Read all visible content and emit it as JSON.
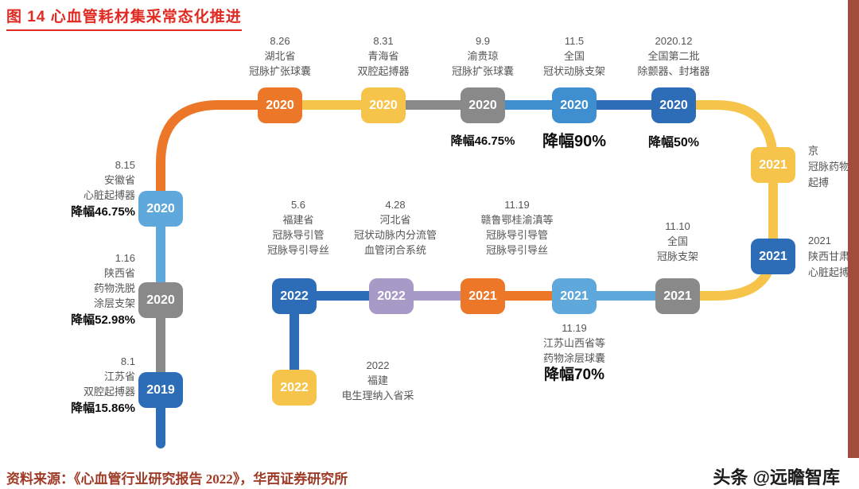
{
  "figure": {
    "title": "图 14 心血管耗材集采常态化推进",
    "source": "资料来源：《心血管行业研究报告 2022》，华西证券研究所",
    "watermark": "头条 @远瞻智库"
  },
  "colors": {
    "title_red": "#e02a22",
    "source_red": "#9e3a26",
    "side_bar": "#a24d3c",
    "orange": "#ec7728",
    "yellow": "#f6c44a",
    "gray": "#898989",
    "blue": "#3e8ed0",
    "dark_blue": "#2d6cb7",
    "light_blue": "#5fa8dc",
    "purple": "#a89ac6",
    "label_text": "#555555",
    "highlight_text": "#0d0d0d"
  },
  "nodes": [
    {
      "year": "2019",
      "color": "#2d6cb7"
    },
    {
      "year": "2020",
      "color": "#898989"
    },
    {
      "year": "2020",
      "color": "#5fa8dc"
    },
    {
      "year": "2020",
      "color": "#ec7728"
    },
    {
      "year": "2020",
      "color": "#f6c44a"
    },
    {
      "year": "2020",
      "color": "#898989"
    },
    {
      "year": "2020",
      "color": "#3e8ed0"
    },
    {
      "year": "2020",
      "color": "#2d6cb7"
    },
    {
      "year": "2021",
      "color": "#f6c44a"
    },
    {
      "year": "2021",
      "color": "#2d6cb7"
    },
    {
      "year": "2021",
      "color": "#898989"
    },
    {
      "year": "2021",
      "color": "#5fa8dc"
    },
    {
      "year": "2021",
      "color": "#ec7728"
    },
    {
      "year": "2022",
      "color": "#a89ac6"
    },
    {
      "year": "2022",
      "color": "#2d6cb7"
    },
    {
      "year": "2022",
      "color": "#f6c44a"
    }
  ],
  "labels": [
    {
      "lines": [
        "8.26",
        "湖北省",
        "冠脉扩张球囊"
      ]
    },
    {
      "lines": [
        "8.31",
        "青海省",
        "双腔起搏器"
      ]
    },
    {
      "lines": [
        "9.9",
        "渝贵琼",
        "冠脉扩张球囊"
      ],
      "highlight": "降幅46.75%"
    },
    {
      "lines": [
        "11.5",
        "全国",
        "冠状动脉支架"
      ],
      "highlight": "降幅90%"
    },
    {
      "lines": [
        "2020.12",
        "全国第二批",
        "除颤器、封堵器"
      ],
      "highlight": "降幅50%"
    },
    {
      "lines": [
        "京",
        "冠脉药物",
        "起搏"
      ]
    },
    {
      "lines": [
        "2021",
        "陕西甘肃",
        "心脏起搏"
      ]
    },
    {
      "lines": [
        "11.10",
        "全国",
        "冠脉支架"
      ]
    },
    {
      "lines": [
        "5.6",
        "福建省",
        "冠脉导引管",
        "冠脉导引导丝"
      ]
    },
    {
      "lines": [
        "4.28",
        "河北省",
        "冠状动脉内分流管",
        "血管闭合系统"
      ]
    },
    {
      "lines": [
        "11.19",
        "赣鲁鄂桂渝滇等",
        "冠脉导引导管",
        "冠脉导引导丝"
      ]
    },
    {
      "lines": [
        "11.19",
        "江苏山西省等",
        "药物涂层球囊"
      ],
      "highlight": "降幅70%"
    },
    {
      "lines": [
        "2022",
        "福建",
        "电生理纳入省采"
      ]
    },
    {
      "lines": [
        "8.15",
        "安徽省",
        "心脏起搏器"
      ],
      "highlight": "降幅46.75%"
    },
    {
      "lines": [
        "1.16",
        "陕西省",
        "药物洗脱",
        "涂层支架"
      ],
      "highlight": "降幅52.98%"
    },
    {
      "lines": [
        "8.1",
        "江苏省",
        "双腔起搏器"
      ],
      "highlight": "降幅15.86%"
    }
  ]
}
